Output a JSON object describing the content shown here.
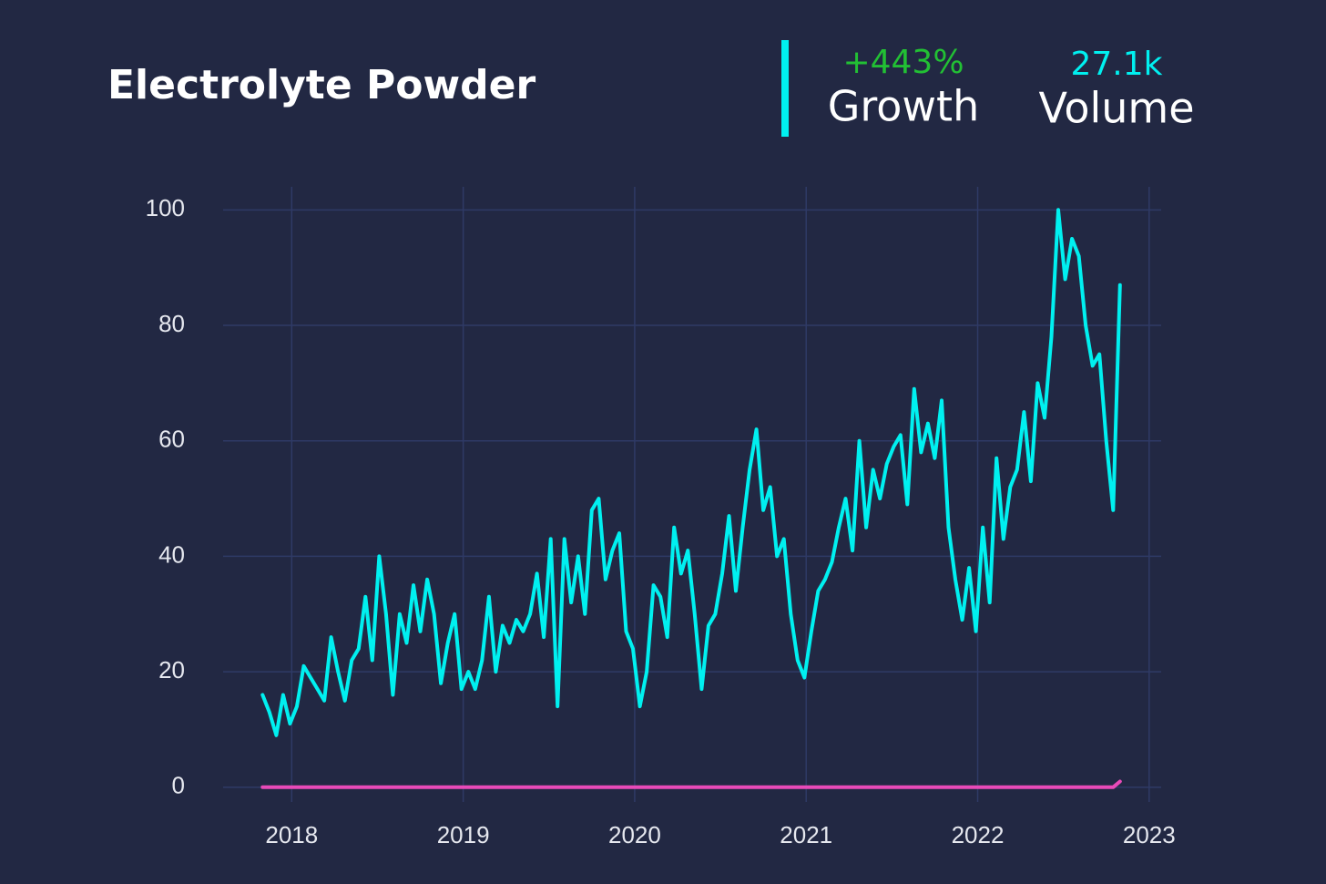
{
  "chart_data": {
    "type": "line",
    "title": "Electrolyte Powder",
    "annotations": [
      {
        "label": "Growth",
        "value_text": "+443%"
      },
      {
        "label": "Volume",
        "value_text": "27.1k"
      }
    ],
    "xlim": [
      2017.6,
      2023.07
    ],
    "xticks": [
      2018,
      2019,
      2020,
      2021,
      2022,
      2023
    ],
    "ylim": [
      -3.5,
      104
    ],
    "yticks": [
      0,
      20,
      40,
      60,
      80,
      100
    ],
    "grid": true,
    "series": [
      {
        "color": "#00f0f0",
        "x": [
          2017.83,
          2017.87,
          2017.91,
          2017.95,
          2017.99,
          2018.03,
          2018.07,
          2018.11,
          2018.15,
          2018.19,
          2018.23,
          2018.27,
          2018.31,
          2018.35,
          2018.39,
          2018.43,
          2018.47,
          2018.51,
          2018.55,
          2018.59,
          2018.63,
          2018.67,
          2018.71,
          2018.75,
          2018.79,
          2018.83,
          2018.87,
          2018.91,
          2018.95,
          2018.99,
          2019.03,
          2019.07,
          2019.11,
          2019.15,
          2019.19,
          2019.23,
          2019.27,
          2019.31,
          2019.35,
          2019.39,
          2019.43,
          2019.47,
          2019.51,
          2019.55,
          2019.59,
          2019.63,
          2019.67,
          2019.71,
          2019.75,
          2019.79,
          2019.83,
          2019.87,
          2019.91,
          2019.95,
          2019.99,
          2020.03,
          2020.07,
          2020.11,
          2020.15,
          2020.19,
          2020.23,
          2020.27,
          2020.31,
          2020.35,
          2020.39,
          2020.43,
          2020.47,
          2020.51,
          2020.55,
          2020.59,
          2020.63,
          2020.67,
          2020.71,
          2020.75,
          2020.79,
          2020.83,
          2020.87,
          2020.91,
          2020.95,
          2020.99,
          2021.03,
          2021.07,
          2021.11,
          2021.15,
          2021.19,
          2021.23,
          2021.27,
          2021.31,
          2021.35,
          2021.39,
          2021.43,
          2021.47,
          2021.51,
          2021.55,
          2021.59,
          2021.63,
          2021.67,
          2021.71,
          2021.75,
          2021.79,
          2021.83,
          2021.87,
          2021.91,
          2021.95,
          2021.99,
          2022.03,
          2022.07,
          2022.11,
          2022.15,
          2022.19,
          2022.23,
          2022.27,
          2022.31,
          2022.35,
          2022.39,
          2022.43,
          2022.47,
          2022.51,
          2022.55,
          2022.59,
          2022.63,
          2022.67,
          2022.71,
          2022.75,
          2022.79,
          2022.83
        ],
        "values": [
          16,
          13,
          9,
          16,
          11,
          14,
          21,
          19,
          17,
          15,
          26,
          20,
          15,
          22,
          24,
          33,
          22,
          40,
          30,
          16,
          30,
          25,
          35,
          27,
          36,
          30,
          18,
          25,
          30,
          17,
          20,
          17,
          22,
          33,
          20,
          28,
          25,
          29,
          27,
          30,
          37,
          26,
          43,
          14,
          43,
          32,
          40,
          30,
          48,
          50,
          36,
          41,
          44,
          27,
          24,
          14,
          20,
          35,
          33,
          26,
          45,
          37,
          41,
          30,
          17,
          28,
          30,
          37,
          47,
          34,
          45,
          55,
          62,
          48,
          52,
          40,
          43,
          30,
          22,
          19,
          27,
          34,
          36,
          39,
          45,
          50,
          41,
          60,
          45,
          55,
          50,
          56,
          59,
          61,
          49,
          69,
          58,
          63,
          57,
          67,
          45,
          36,
          29,
          38,
          27,
          45,
          32,
          57,
          43,
          52,
          55,
          65,
          53,
          70,
          64,
          78,
          100,
          88,
          95,
          92,
          80,
          73,
          75,
          60,
          48,
          87
        ]
      },
      {
        "color": "#e84ab8",
        "x": [
          2017.83,
          2022.79,
          2022.83
        ],
        "values": [
          0,
          0,
          1
        ]
      }
    ]
  }
}
